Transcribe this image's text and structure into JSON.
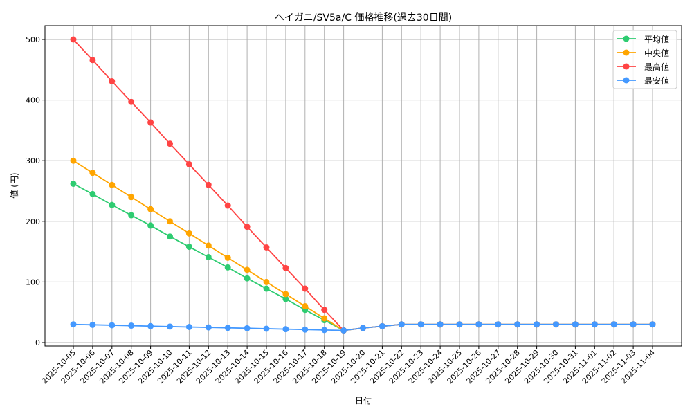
{
  "chart_data": {
    "type": "line",
    "title": "ヘイガニ/SV5a/C 価格推移(過去30日間)",
    "xlabel": "日付",
    "ylabel": "値 (円)",
    "ylim": [
      0,
      520
    ],
    "yticks": [
      0,
      100,
      200,
      300,
      400,
      500
    ],
    "grid": true,
    "legend_position": "top-right",
    "x": [
      "2025-10-05",
      "2025-10-06",
      "2025-10-07",
      "2025-10-08",
      "2025-10-09",
      "2025-10-10",
      "2025-10-11",
      "2025-10-12",
      "2025-10-13",
      "2025-10-14",
      "2025-10-15",
      "2025-10-16",
      "2025-10-17",
      "2025-10-18",
      "2025-10-19",
      "2025-10-20",
      "2025-10-21",
      "2025-10-22",
      "2025-10-23",
      "2025-10-24",
      "2025-10-25",
      "2025-10-26",
      "2025-10-27",
      "2025-10-28",
      "2025-10-29",
      "2025-10-30",
      "2025-10-31",
      "2025-11-01",
      "2025-11-02",
      "2025-11-03",
      "2025-11-04"
    ],
    "series": [
      {
        "name": "平均値",
        "color": "#2ecc71",
        "values": [
          262,
          245,
          227,
          210,
          193,
          175,
          158,
          141,
          124,
          106,
          89,
          72,
          54,
          37,
          20,
          24,
          27,
          30,
          30,
          30,
          30,
          30,
          30,
          30,
          30,
          30,
          30,
          30,
          30,
          30,
          30
        ]
      },
      {
        "name": "中央値",
        "color": "#ffa500",
        "values": [
          300,
          280,
          260,
          240,
          220,
          200,
          180,
          160,
          140,
          120,
          100,
          80,
          60,
          40,
          20,
          24,
          27,
          30,
          30,
          30,
          30,
          30,
          30,
          30,
          30,
          30,
          30,
          30,
          30,
          30,
          30
        ]
      },
      {
        "name": "最高値",
        "color": "#ff4444",
        "values": [
          500,
          466,
          431,
          397,
          363,
          328,
          294,
          260,
          226,
          191,
          157,
          123,
          89,
          54,
          20,
          24,
          27,
          30,
          30,
          30,
          30,
          30,
          30,
          30,
          30,
          30,
          30,
          30,
          30,
          30,
          30
        ]
      },
      {
        "name": "最安値",
        "color": "#4499ff",
        "values": [
          30,
          29.3,
          28.6,
          27.9,
          27.1,
          26.4,
          25.7,
          25,
          24.3,
          23.6,
          22.9,
          22.1,
          21.4,
          20.7,
          20,
          24,
          27,
          30,
          30,
          30,
          30,
          30,
          30,
          30,
          30,
          30,
          30,
          30,
          30,
          30,
          30
        ]
      }
    ]
  }
}
